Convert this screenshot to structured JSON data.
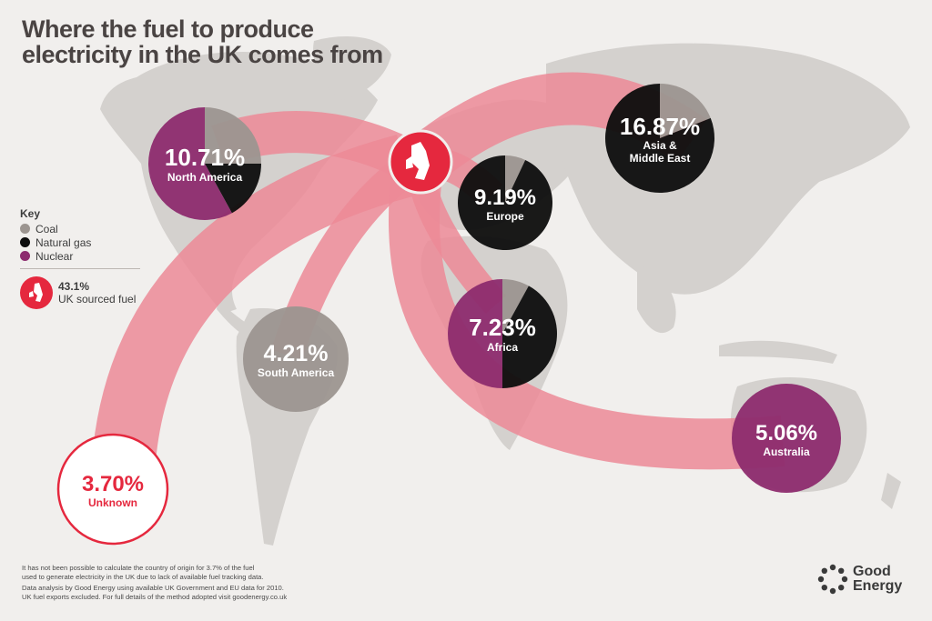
{
  "title": [
    "Where the fuel to produce",
    "electricity in the UK comes from"
  ],
  "key": {
    "title": "Key",
    "items": [
      {
        "label": "Coal",
        "color": "#9c9590"
      },
      {
        "label": "Natural gas",
        "color": "#0d0d0d"
      },
      {
        "label": "Nuclear",
        "color": "#8d2b6e"
      }
    ],
    "uk_value": "43.1%",
    "uk_label": "UK sourced fuel"
  },
  "colors": {
    "background": "#f1efed",
    "land": "#d4d1ce",
    "arrow": "#ec8a96",
    "uk_red": "#e5283e",
    "south_america": "#9c9590",
    "australia": "#8d2b6e"
  },
  "chart_data": {
    "type": "pie",
    "series_labels": [
      "Coal",
      "Natural gas",
      "Nuclear"
    ],
    "regions": [
      {
        "name": "North America",
        "value": "10.71%",
        "composition": {
          "Coal": 0.25,
          "Natural gas": 0.17,
          "Nuclear": 0.58
        }
      },
      {
        "name": "Asia & Middle East",
        "value": "16.87%",
        "composition": {
          "Coal": 0.19,
          "Natural gas": 0.81,
          "Nuclear": 0
        }
      },
      {
        "name": "Europe",
        "value": "9.19%",
        "composition": {
          "Coal": 0.07,
          "Natural gas": 0.93,
          "Nuclear": 0
        }
      },
      {
        "name": "Africa",
        "value": "7.23%",
        "composition": {
          "Coal": 0.08,
          "Natural gas": 0.42,
          "Nuclear": 0.5
        }
      },
      {
        "name": "South America",
        "value": "4.21%",
        "composition": {
          "Coal": 1,
          "Natural gas": 0,
          "Nuclear": 0
        }
      },
      {
        "name": "Australia",
        "value": "5.06%",
        "composition": {
          "Coal": 0,
          "Natural gas": 0,
          "Nuclear": 1
        }
      },
      {
        "name": "Unknown",
        "value": "3.70%",
        "composition": {}
      }
    ]
  },
  "footnote": [
    "It has not been possible to calculate the country of origin for 3.7% of the fuel",
    "used to generate electricity in the UK due to lack of available fuel tracking data.",
    "Data analysis by Good Energy using available UK Government and EU data for 2010.",
    "UK fuel exports excluded. For full details of the method adopted visit goodenergy.co.uk"
  ],
  "logo": [
    "Good",
    "Energy"
  ]
}
